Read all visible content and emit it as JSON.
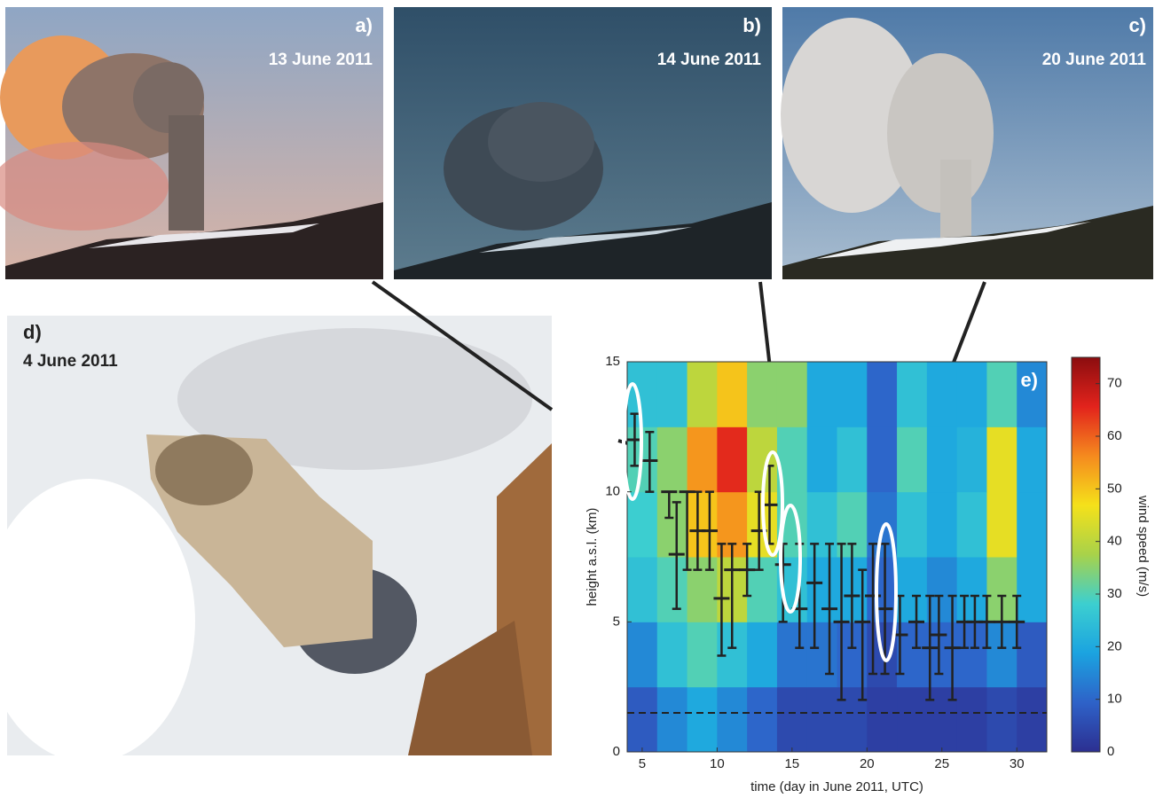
{
  "panels": [
    {
      "label": "a)",
      "date": "13 June 2011"
    },
    {
      "label": "b)",
      "date": "14 June 2011"
    },
    {
      "label": "c)",
      "date": "20 June 2011"
    },
    {
      "label": "d)",
      "date": "4 June 2011"
    }
  ],
  "chart_data": {
    "type": "contour",
    "panel_label": "e)",
    "xlabel": "time (day in June 2011, UTC)",
    "ylabel": "height a.s.l. (km)",
    "xlim": [
      4,
      32
    ],
    "xticks": [
      5,
      10,
      15,
      20,
      25,
      30
    ],
    "ylim": [
      0,
      15
    ],
    "yticks": [
      0,
      5,
      10,
      15
    ],
    "wind_field": [
      [
        8,
        15,
        20,
        15,
        10,
        5,
        5,
        5,
        3,
        3,
        3,
        3,
        5,
        3
      ],
      [
        15,
        25,
        30,
        25,
        20,
        12,
        12,
        10,
        5,
        10,
        10,
        10,
        15,
        8
      ],
      [
        25,
        30,
        35,
        40,
        30,
        25,
        20,
        20,
        10,
        20,
        15,
        20,
        35,
        20
      ],
      [
        28,
        35,
        50,
        55,
        45,
        30,
        25,
        30,
        12,
        25,
        20,
        25,
        45,
        20
      ],
      [
        30,
        35,
        55,
        65,
        40,
        30,
        20,
        25,
        10,
        30,
        20,
        22,
        45,
        20
      ],
      [
        25,
        25,
        40,
        50,
        35,
        35,
        20,
        20,
        10,
        25,
        20,
        20,
        30,
        15
      ]
    ],
    "colorbar": {
      "label": "wind speed (m/s)",
      "lim": [
        0,
        75
      ],
      "ticks": [
        0,
        10,
        20,
        30,
        40,
        50,
        60,
        70
      ],
      "colormap": [
        "#2c2f91",
        "#2e62c8",
        "#1ba3e0",
        "#3ccfd0",
        "#a8d24a",
        "#f5e11a",
        "#f58a1e",
        "#e2231c",
        "#8b0d0f"
      ]
    },
    "plume_heights": {
      "color": "#222",
      "x": [
        4.5,
        5.5,
        6.8,
        7.3,
        8,
        8.7,
        9.5,
        10.3,
        11,
        12,
        12.8,
        13.5,
        14.4,
        15.5,
        16.5,
        17.5,
        18.3,
        19,
        19.7,
        20.4,
        21.2,
        22.2,
        23.3,
        24.2,
        24.8,
        25.7,
        26.5,
        27.2,
        28,
        29,
        30
      ],
      "y": [
        12,
        11.2,
        10,
        7.6,
        10,
        8.5,
        8.5,
        5.9,
        7,
        7,
        8.5,
        9.5,
        7.2,
        5.5,
        6.5,
        5.5,
        5,
        6,
        5,
        6,
        5.5,
        4.5,
        5,
        4,
        4.5,
        4,
        5,
        5,
        5,
        5,
        5
      ],
      "low": [
        11,
        10,
        9,
        5.5,
        7,
        7,
        7,
        3.7,
        4,
        6,
        7,
        8,
        5,
        4,
        4,
        3,
        2,
        4,
        2,
        3,
        3,
        3,
        4,
        2,
        3,
        2,
        4,
        4,
        4,
        4,
        4
      ],
      "high": [
        13,
        12.3,
        10,
        9.6,
        10,
        10,
        10,
        8,
        8,
        8,
        10,
        11,
        8,
        8,
        8,
        8,
        8,
        8,
        7,
        8,
        8,
        6,
        6,
        6,
        6,
        6,
        6,
        6,
        6,
        6,
        6
      ]
    },
    "reference_height": 1.5
  }
}
